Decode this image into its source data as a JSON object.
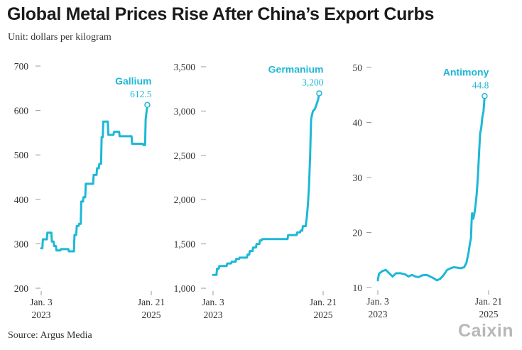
{
  "title": "Global Metal Prices Rise After China’s Export Curbs",
  "subtitle": "Unit: dollars per kilogram",
  "source": "Source: Argus Media",
  "logo_text": "Caixin",
  "colors": {
    "line": "#1db8d6",
    "text": "#1a1a1a",
    "tick": "#999999",
    "logo": "#b8b8b8"
  },
  "chart_data": [
    {
      "type": "line",
      "series_name": "Gallium",
      "end_label": "612.5",
      "ylim": [
        200,
        700
      ],
      "yticks": [
        200,
        300,
        400,
        500,
        600,
        700
      ],
      "ytick_labels": [
        "200",
        "300",
        "400",
        "500",
        "600",
        "700"
      ],
      "xlim": [
        0,
        100
      ],
      "xtick_labels": [
        [
          "Jan. 3",
          "2023"
        ],
        [
          "Jan. 21",
          "2025"
        ]
      ],
      "points": [
        [
          0,
          290
        ],
        [
          1,
          290
        ],
        [
          1.5,
          310
        ],
        [
          5,
          310
        ],
        [
          5.5,
          325
        ],
        [
          9,
          325
        ],
        [
          9.5,
          305
        ],
        [
          11,
          305
        ],
        [
          11.5,
          295
        ],
        [
          13,
          295
        ],
        [
          13.5,
          285
        ],
        [
          17,
          285
        ],
        [
          17.5,
          288
        ],
        [
          24,
          288
        ],
        [
          24.5,
          283
        ],
        [
          29,
          283
        ],
        [
          29.5,
          320
        ],
        [
          31,
          320
        ],
        [
          31.5,
          340
        ],
        [
          33,
          340
        ],
        [
          33.5,
          345
        ],
        [
          35,
          345
        ],
        [
          35.5,
          395
        ],
        [
          37,
          395
        ],
        [
          37.5,
          405
        ],
        [
          39,
          405
        ],
        [
          39.5,
          435
        ],
        [
          46,
          435
        ],
        [
          46.5,
          455
        ],
        [
          49,
          455
        ],
        [
          49.5,
          470
        ],
        [
          51,
          470
        ],
        [
          51.5,
          480
        ],
        [
          53,
          480
        ],
        [
          53.5,
          540
        ],
        [
          54.5,
          540
        ],
        [
          55,
          575
        ],
        [
          59,
          575
        ],
        [
          59.5,
          545
        ],
        [
          64,
          545
        ],
        [
          64.5,
          552
        ],
        [
          69,
          552
        ],
        [
          69.5,
          542
        ],
        [
          80,
          542
        ],
        [
          80.5,
          525
        ],
        [
          90,
          525
        ],
        [
          90.5,
          522
        ],
        [
          92,
          522
        ],
        [
          92.5,
          580
        ],
        [
          94,
          612.5
        ]
      ]
    },
    {
      "type": "line",
      "series_name": "Germanium",
      "end_label": "3,200",
      "ylim": [
        1000,
        3500
      ],
      "yticks": [
        1000,
        1500,
        2000,
        2500,
        3000,
        3500
      ],
      "ytick_labels": [
        "1,000",
        "1,500",
        "2,000",
        "2,500",
        "3,000",
        "3,500"
      ],
      "xlim": [
        0,
        100
      ],
      "xtick_labels": [
        [
          "Jan. 3",
          "2023"
        ],
        [
          "Jan. 21",
          "2025"
        ]
      ],
      "points": [
        [
          0,
          1150
        ],
        [
          3,
          1150
        ],
        [
          3.5,
          1220
        ],
        [
          5,
          1220
        ],
        [
          5.5,
          1250
        ],
        [
          12,
          1250
        ],
        [
          12.5,
          1280
        ],
        [
          16,
          1280
        ],
        [
          16.5,
          1300
        ],
        [
          20,
          1300
        ],
        [
          20.5,
          1330
        ],
        [
          23,
          1330
        ],
        [
          23.5,
          1345
        ],
        [
          30,
          1345
        ],
        [
          30.5,
          1380
        ],
        [
          32,
          1380
        ],
        [
          32.5,
          1420
        ],
        [
          35,
          1420
        ],
        [
          35.5,
          1460
        ],
        [
          38,
          1460
        ],
        [
          38.5,
          1500
        ],
        [
          41,
          1500
        ],
        [
          41.5,
          1540
        ],
        [
          43,
          1540
        ],
        [
          43.5,
          1555
        ],
        [
          66,
          1555
        ],
        [
          66.5,
          1600
        ],
        [
          74,
          1600
        ],
        [
          74.5,
          1630
        ],
        [
          77,
          1630
        ],
        [
          77.5,
          1650
        ],
        [
          79,
          1650
        ],
        [
          79.5,
          1700
        ],
        [
          82,
          1700
        ],
        [
          83,
          1800
        ],
        [
          84,
          1950
        ],
        [
          85,
          2150
        ],
        [
          86,
          2500
        ],
        [
          86.8,
          2900
        ],
        [
          87.5,
          2950
        ],
        [
          88.5,
          3000
        ],
        [
          90,
          3020
        ],
        [
          91,
          3050
        ],
        [
          92,
          3090
        ],
        [
          93,
          3130
        ],
        [
          94,
          3200
        ]
      ]
    },
    {
      "type": "line",
      "series_name": "Antimony",
      "end_label": "44.8",
      "ylim": [
        10,
        50
      ],
      "yticks": [
        10,
        20,
        30,
        40,
        50
      ],
      "ytick_labels": [
        "10",
        "20",
        "30",
        "40",
        "50"
      ],
      "xlim": [
        0,
        100
      ],
      "xtick_labels": [
        [
          "Jan. 3",
          "2023"
        ],
        [
          "Jan. 21",
          "2025"
        ]
      ],
      "points": [
        [
          0,
          11.3
        ],
        [
          1,
          12.5
        ],
        [
          4,
          13.0
        ],
        [
          7,
          13.2
        ],
        [
          10,
          12.6
        ],
        [
          13,
          12.0
        ],
        [
          16,
          12.6
        ],
        [
          20,
          12.6
        ],
        [
          24,
          12.4
        ],
        [
          27,
          12.0
        ],
        [
          30,
          12.3
        ],
        [
          33,
          12.0
        ],
        [
          36,
          11.9
        ],
        [
          39,
          12.2
        ],
        [
          43,
          12.3
        ],
        [
          46,
          12.0
        ],
        [
          49,
          11.7
        ],
        [
          52,
          11.3
        ],
        [
          55,
          11.6
        ],
        [
          58,
          12.3
        ],
        [
          61,
          13.2
        ],
        [
          64,
          13.5
        ],
        [
          67,
          13.7
        ],
        [
          70,
          13.6
        ],
        [
          73,
          13.5
        ],
        [
          76,
          13.7
        ],
        [
          78,
          14.5
        ],
        [
          80,
          16.5
        ],
        [
          81,
          18
        ],
        [
          82,
          19
        ],
        [
          82.5,
          22
        ],
        [
          83,
          23.5
        ],
        [
          84,
          22.5
        ],
        [
          85,
          23.5
        ],
        [
          86,
          25
        ],
        [
          87,
          27
        ],
        [
          88,
          30
        ],
        [
          89,
          34
        ],
        [
          90,
          38
        ],
        [
          91,
          39
        ],
        [
          92,
          41
        ],
        [
          93,
          42
        ],
        [
          94,
          44.8
        ]
      ]
    }
  ]
}
